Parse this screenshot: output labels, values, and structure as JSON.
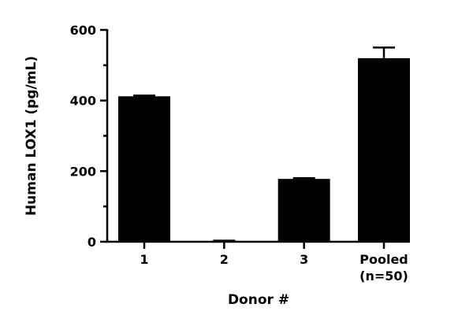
{
  "chart_data": {
    "type": "bar",
    "categories": [
      "1",
      "2",
      "3",
      "Pooled\n(n=50)"
    ],
    "values": [
      412,
      2,
      178,
      520
    ],
    "errors": [
      2,
      1,
      2,
      30
    ],
    "xlabel": "Donor #",
    "ylabel": "Human LOX1 (pg/mL)",
    "ylim": [
      0,
      600
    ],
    "yticks": [
      0,
      200,
      400,
      600
    ],
    "grid": false,
    "bar_color": "#000000"
  }
}
